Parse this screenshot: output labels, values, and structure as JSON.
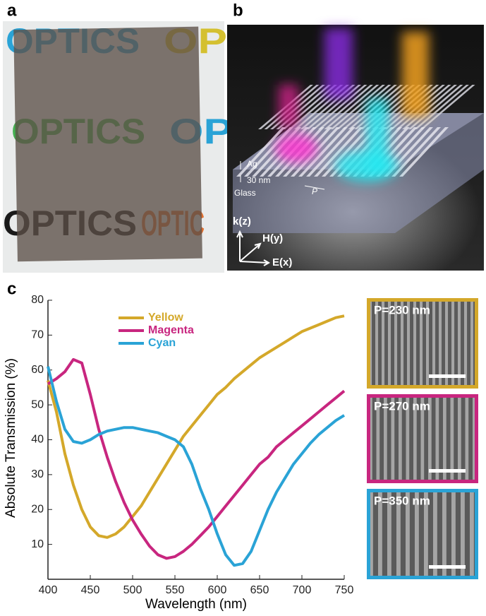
{
  "panel_labels": [
    "a",
    "b",
    "c"
  ],
  "panel_a": {
    "words": [
      "OPTICS",
      "OP",
      "OPTICS",
      "OP",
      "OPTICS",
      "OPTIC"
    ]
  },
  "panel_b": {
    "labels": [
      "Ag",
      "30 nm",
      "Glass",
      "P",
      "k(z)",
      "H(y)",
      "E(x)"
    ]
  },
  "sem_images": [
    {
      "label": "P=230 nm",
      "color": "#d4a82a"
    },
    {
      "label": "P=270 nm",
      "color": "#c8267f"
    },
    {
      "label": "P=350 nm",
      "color": "#2aa3d6"
    }
  ],
  "chart_data": {
    "type": "line",
    "xlabel": "Wavelength (nm)",
    "ylabel": "Absolute Transmission (%)",
    "xlim": [
      400,
      750
    ],
    "xticks": [
      400,
      450,
      500,
      550,
      600,
      650,
      700,
      750
    ],
    "ylim": [
      0,
      80
    ],
    "yticks": [
      10,
      20,
      30,
      40,
      50,
      60,
      70,
      80
    ],
    "x": [
      400,
      410,
      420,
      430,
      440,
      450,
      460,
      470,
      480,
      490,
      500,
      510,
      520,
      530,
      540,
      550,
      560,
      570,
      580,
      590,
      600,
      610,
      620,
      630,
      640,
      650,
      660,
      670,
      680,
      690,
      700,
      710,
      720,
      730,
      740,
      750
    ],
    "series": [
      {
        "name": "Yellow",
        "color": "#d4a82a",
        "values": [
          57,
          48,
          36,
          27,
          20,
          15,
          12.5,
          12,
          13,
          15,
          18,
          21,
          25,
          29,
          33,
          37,
          41,
          44,
          47,
          50,
          53,
          55,
          57.5,
          59.5,
          61.5,
          63.5,
          65,
          66.5,
          68,
          69.5,
          71,
          72,
          73,
          74,
          75,
          75.5
        ]
      },
      {
        "name": "Magenta",
        "color": "#c8267f",
        "values": [
          56,
          57.5,
          59.5,
          63,
          62,
          53,
          43,
          35,
          28,
          22,
          17,
          13,
          9.5,
          7,
          6,
          6.5,
          8,
          10,
          12.5,
          15,
          18,
          21,
          24,
          27,
          30,
          33,
          35,
          38,
          40,
          42,
          44,
          46,
          48,
          50,
          52,
          54
        ]
      },
      {
        "name": "Cyan",
        "color": "#2aa3d6",
        "values": [
          61,
          51,
          43,
          39.5,
          39,
          40,
          41.5,
          42.5,
          43,
          43.5,
          43.5,
          43,
          42.5,
          42,
          41,
          40,
          38,
          33,
          26,
          20,
          13,
          7,
          4,
          4.5,
          8,
          14,
          20,
          25,
          29,
          33,
          36,
          39,
          41.5,
          43.5,
          45.5,
          47
        ]
      }
    ]
  }
}
